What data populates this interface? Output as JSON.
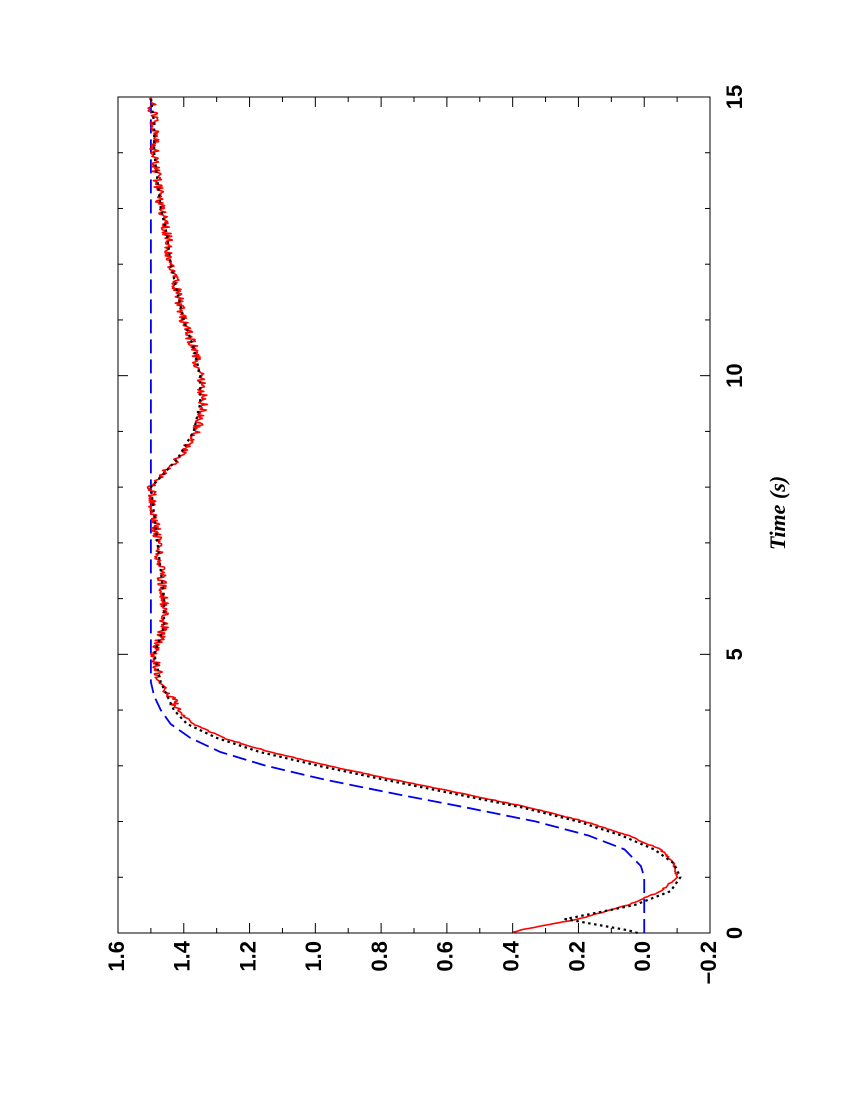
{
  "chart_data": {
    "type": "line",
    "orientation": "rotated-90-clockwise",
    "title": "",
    "xlabel": "Time (s)",
    "ylabel": "",
    "xlim": [
      0,
      15
    ],
    "ylim": [
      -0.2,
      1.6
    ],
    "x_ticks": [
      "0",
      "5",
      "10",
      "15"
    ],
    "y_ticks": [
      "−0.2",
      "0.0",
      "0.2",
      "0.4",
      "0.6",
      "0.8",
      "1.0",
      "1.2",
      "1.4",
      "1.6"
    ],
    "grid": false,
    "legend": "none",
    "series": [
      {
        "style": "dashed",
        "color": "#0000ee",
        "x": [
          0,
          0.5,
          1.0,
          1.2,
          1.5,
          1.75,
          2.0,
          2.25,
          2.5,
          2.75,
          3.0,
          3.25,
          3.5,
          3.75,
          4.0,
          4.25,
          4.5,
          5.0,
          6.0,
          8.0,
          10.0,
          12.0,
          15.0
        ],
        "y": [
          0.0,
          0.0,
          0.0,
          0.01,
          0.06,
          0.17,
          0.33,
          0.54,
          0.76,
          0.97,
          1.15,
          1.29,
          1.38,
          1.44,
          1.47,
          1.49,
          1.5,
          1.5,
          1.5,
          1.5,
          1.5,
          1.5,
          1.5
        ]
      },
      {
        "style": "dotted",
        "color": "#000000",
        "x": [
          0,
          0.05,
          0.25,
          0.5,
          0.75,
          1.0,
          1.25,
          1.5,
          1.75,
          2.0,
          2.25,
          2.5,
          2.75,
          3.0,
          3.25,
          3.5,
          3.75,
          4.0,
          4.25,
          4.5,
          5.0,
          5.5,
          6.0,
          6.5,
          7.0,
          7.5,
          8.0,
          8.5,
          9.0,
          9.5,
          10.0,
          10.5,
          11.0,
          11.5,
          12.0,
          12.5,
          13.0,
          13.5,
          14.0,
          14.5,
          15.0
        ],
        "y": [
          0.02,
          0.05,
          0.24,
          0.03,
          -0.08,
          -0.11,
          -0.09,
          -0.03,
          0.07,
          0.2,
          0.37,
          0.58,
          0.79,
          0.99,
          1.17,
          1.3,
          1.39,
          1.43,
          1.45,
          1.47,
          1.49,
          1.46,
          1.46,
          1.47,
          1.48,
          1.49,
          1.5,
          1.42,
          1.37,
          1.35,
          1.35,
          1.37,
          1.4,
          1.42,
          1.44,
          1.45,
          1.47,
          1.48,
          1.49,
          1.49,
          1.5
        ]
      },
      {
        "style": "solid-noisy",
        "color": "#ff0000",
        "x": [
          0,
          0.05,
          0.25,
          0.5,
          0.75,
          1.0,
          1.25,
          1.5,
          1.75,
          2.0,
          2.25,
          2.5,
          2.75,
          3.0,
          3.25,
          3.5,
          3.75,
          4.0,
          4.25,
          4.5,
          5.0,
          5.5,
          6.0,
          6.5,
          7.0,
          7.5,
          8.0,
          8.5,
          9.0,
          9.5,
          10.0,
          10.5,
          11.0,
          11.5,
          12.0,
          12.5,
          13.0,
          13.5,
          14.0,
          14.5,
          15.0
        ],
        "y": [
          0.4,
          0.38,
          0.2,
          0.05,
          -0.05,
          -0.1,
          -0.09,
          -0.05,
          0.05,
          0.18,
          0.35,
          0.55,
          0.76,
          0.96,
          1.14,
          1.28,
          1.37,
          1.42,
          1.44,
          1.47,
          1.49,
          1.46,
          1.46,
          1.47,
          1.48,
          1.49,
          1.5,
          1.42,
          1.36,
          1.34,
          1.35,
          1.37,
          1.4,
          1.42,
          1.44,
          1.45,
          1.47,
          1.48,
          1.49,
          1.49,
          1.5
        ]
      }
    ]
  }
}
